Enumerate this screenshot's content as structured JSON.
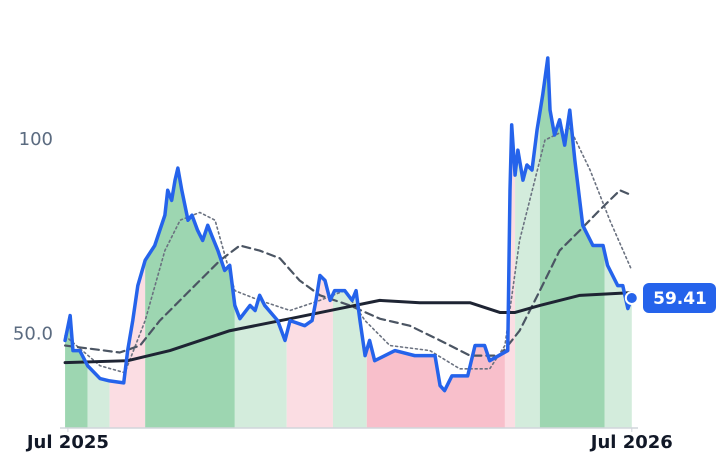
{
  "chart_data": {
    "type": "line",
    "xlim": [
      2025.486,
      2026.511
    ],
    "ylim": [
      26,
      136
    ],
    "xticks": [
      {
        "value": 2025.5,
        "label": "Jul 2025"
      },
      {
        "value": 2026.5,
        "label": "Jul 2026"
      }
    ],
    "yticks": [
      {
        "value": 50,
        "label": "50.0"
      },
      100
    ],
    "shading": [
      {
        "x": [
          2025.495,
          2025.535
        ],
        "color": "#9dd6b1"
      },
      {
        "x": [
          2025.535,
          2025.574
        ],
        "color": "#d3ecdc"
      },
      {
        "x": [
          2025.574,
          2025.637
        ],
        "color": "#fbdde3"
      },
      {
        "x": [
          2025.637,
          2025.796
        ],
        "color": "#9dd6b1"
      },
      {
        "x": [
          2025.796,
          2025.888
        ],
        "color": "#d3ecdc"
      },
      {
        "x": [
          2025.888,
          2025.97
        ],
        "color": "#fbdde3"
      },
      {
        "x": [
          2025.97,
          2026.03
        ],
        "color": "#d3ecdc"
      },
      {
        "x": [
          2026.03,
          2026.275
        ],
        "color": "#f8bfcb"
      },
      {
        "x": [
          2026.275,
          2026.293
        ],
        "color": "#fbdde3"
      },
      {
        "x": [
          2026.293,
          2026.337
        ],
        "color": "#d3ecdc"
      },
      {
        "x": [
          2026.337,
          2026.452
        ],
        "color": "#9dd6b1"
      },
      {
        "x": [
          2026.452,
          2026.5
        ],
        "color": "#d3ecdc"
      }
    ],
    "series": [
      {
        "color": "#6b7280",
        "style": "dotted",
        "x": [
          2025.495,
          2025.557,
          2025.601,
          2025.637,
          2025.672,
          2025.699,
          2025.734,
          2025.761,
          2025.796,
          2025.84,
          2025.894,
          2025.947,
          2025.991,
          2026.027,
          2026.071,
          2026.142,
          2026.195,
          2026.248,
          2026.275,
          2026.301,
          2026.346,
          2026.39,
          2026.426,
          2026.461,
          2026.5
        ],
        "values": [
          49.7,
          42.0,
          40.2,
          53.6,
          71.6,
          79.4,
          81.4,
          79.4,
          61.3,
          58.8,
          56.2,
          58.8,
          61.3,
          53.6,
          47.2,
          45.9,
          41.2,
          41.2,
          47.2,
          74.2,
          100.0,
          103.1,
          92.3,
          79.4,
          66.5
        ]
      },
      {
        "color": "#4b5563",
        "style": "dashed",
        "x": [
          2025.495,
          2025.592,
          2025.628,
          2025.663,
          2025.716,
          2025.77,
          2025.805,
          2025.84,
          2025.876,
          2025.911,
          2025.947,
          2026.0,
          2026.053,
          2026.106,
          2026.16,
          2026.213,
          2026.266,
          2026.301,
          2026.337,
          2026.372,
          2026.408,
          2026.443,
          2026.479,
          2026.5
        ],
        "values": [
          47.2,
          45.4,
          47.2,
          53.6,
          61.3,
          69.1,
          72.9,
          71.6,
          69.6,
          63.9,
          60.1,
          57.5,
          54.1,
          52.3,
          48.5,
          44.6,
          44.6,
          51.0,
          61.3,
          71.6,
          76.8,
          82.0,
          87.1,
          85.8
        ]
      },
      {
        "color": "#1e2433",
        "style": "solid",
        "x": [
          2025.495,
          2025.606,
          2025.681,
          2025.787,
          2025.894,
          2025.982,
          2026.053,
          2026.124,
          2026.213,
          2026.266,
          2026.293,
          2026.337,
          2026.408,
          2026.5
        ],
        "values": [
          42.8,
          43.3,
          45.9,
          51.0,
          54.1,
          56.7,
          58.8,
          58.2,
          58.2,
          55.7,
          55.7,
          57.5,
          60.1,
          60.8
        ]
      },
      {
        "color": "#2563eb",
        "style": "main",
        "x": [
          2025.495,
          2025.504,
          2025.509,
          2025.521,
          2025.535,
          2025.557,
          2025.574,
          2025.599,
          2025.606,
          2025.615,
          2025.624,
          2025.637,
          2025.654,
          2025.663,
          2025.672,
          2025.677,
          2025.684,
          2025.69,
          2025.695,
          2025.702,
          2025.713,
          2025.72,
          2025.73,
          2025.739,
          2025.748,
          2025.755,
          2025.766,
          2025.778,
          2025.787,
          2025.796,
          2025.805,
          2025.823,
          2025.832,
          2025.84,
          2025.849,
          2025.872,
          2025.885,
          2025.894,
          2025.92,
          2025.933,
          2025.94,
          2025.947,
          2025.956,
          2025.965,
          2025.973,
          2025.991,
          2026.004,
          2026.011,
          2026.018,
          2026.027,
          2026.035,
          2026.044,
          2026.08,
          2026.115,
          2026.151,
          2026.16,
          2026.168,
          2026.181,
          2026.209,
          2026.222,
          2026.239,
          2026.248,
          2026.28,
          2026.284,
          2026.287,
          2026.293,
          2026.298,
          2026.307,
          2026.314,
          2026.323,
          2026.332,
          2026.342,
          2026.351,
          2026.355,
          2026.363,
          2026.372,
          2026.381,
          2026.39,
          2026.399,
          2026.413,
          2026.431,
          2026.449,
          2026.457,
          2026.475,
          2026.484,
          2026.493,
          2026.5
        ],
        "values": [
          48.5,
          54.9,
          45.9,
          45.9,
          42.0,
          38.7,
          38.1,
          37.6,
          45.9,
          53.6,
          62.6,
          69.1,
          72.9,
          76.8,
          80.7,
          87.1,
          84.5,
          89.7,
          92.8,
          87.1,
          79.4,
          80.7,
          76.8,
          74.2,
          78.1,
          75.5,
          71.6,
          66.5,
          67.8,
          57.5,
          54.1,
          57.5,
          56.2,
          60.1,
          57.5,
          53.6,
          48.5,
          53.6,
          52.3,
          53.6,
          58.8,
          65.2,
          63.9,
          58.8,
          61.3,
          61.3,
          58.8,
          61.3,
          53.6,
          44.6,
          48.5,
          43.3,
          45.9,
          44.6,
          44.6,
          36.9,
          35.6,
          39.4,
          39.4,
          47.2,
          47.2,
          43.3,
          45.9,
          87.1,
          103.9,
          91.0,
          97.4,
          89.7,
          93.6,
          92.3,
          102.6,
          111.6,
          121.1,
          107.7,
          101.3,
          105.2,
          98.7,
          107.7,
          94.8,
          78.1,
          72.9,
          72.9,
          67.8,
          62.6,
          62.6,
          56.7,
          59.41
        ]
      }
    ]
  }
}
